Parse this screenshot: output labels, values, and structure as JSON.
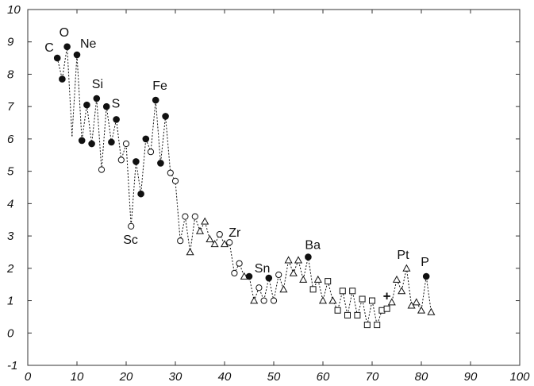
{
  "chart_data": {
    "type": "scatter",
    "title": "",
    "xlabel": "",
    "ylabel": "",
    "xlim": [
      0,
      100
    ],
    "ylim": [
      -1,
      10
    ],
    "xticks": [
      "0",
      "10",
      "20",
      "30",
      "40",
      "50",
      "60",
      "70",
      "80",
      "90",
      "100"
    ],
    "yticks": [
      "-1",
      "0",
      "1",
      "2",
      "3",
      "4",
      "5",
      "6",
      "7",
      "8",
      "9",
      "10"
    ],
    "grid": false,
    "line_style": "dashed",
    "colors": {
      "ink": "#111111",
      "frame": "#333333"
    },
    "points": [
      {
        "x": 6,
        "y": 8.5,
        "m": "filled"
      },
      {
        "x": 7,
        "y": 7.85,
        "m": "filled"
      },
      {
        "x": 8,
        "y": 8.85,
        "m": "filled"
      },
      {
        "x": 9,
        "y": 6.1,
        "m": "none"
      },
      {
        "x": 10,
        "y": 8.6,
        "m": "filled"
      },
      {
        "x": 11,
        "y": 5.95,
        "m": "filled"
      },
      {
        "x": 12,
        "y": 7.05,
        "m": "filled"
      },
      {
        "x": 13,
        "y": 5.85,
        "m": "filled"
      },
      {
        "x": 14,
        "y": 7.25,
        "m": "filled"
      },
      {
        "x": 15,
        "y": 5.05,
        "m": "circle"
      },
      {
        "x": 16,
        "y": 7.0,
        "m": "filled"
      },
      {
        "x": 17,
        "y": 5.9,
        "m": "filled"
      },
      {
        "x": 18,
        "y": 6.6,
        "m": "filled"
      },
      {
        "x": 19,
        "y": 5.35,
        "m": "circle"
      },
      {
        "x": 20,
        "y": 5.85,
        "m": "circle"
      },
      {
        "x": 21,
        "y": 3.3,
        "m": "circle"
      },
      {
        "x": 22,
        "y": 5.3,
        "m": "filled"
      },
      {
        "x": 23,
        "y": 4.3,
        "m": "filled"
      },
      {
        "x": 24,
        "y": 6.0,
        "m": "filled"
      },
      {
        "x": 25,
        "y": 5.6,
        "m": "circle"
      },
      {
        "x": 26,
        "y": 7.2,
        "m": "filled"
      },
      {
        "x": 27,
        "y": 5.25,
        "m": "filled"
      },
      {
        "x": 28,
        "y": 6.7,
        "m": "filled"
      },
      {
        "x": 29,
        "y": 4.95,
        "m": "circle"
      },
      {
        "x": 30,
        "y": 4.7,
        "m": "circle"
      },
      {
        "x": 31,
        "y": 2.85,
        "m": "circle"
      },
      {
        "x": 32,
        "y": 3.6,
        "m": "circle"
      },
      {
        "x": 33,
        "y": 2.5,
        "m": "triangle"
      },
      {
        "x": 34,
        "y": 3.6,
        "m": "circle"
      },
      {
        "x": 35,
        "y": 3.15,
        "m": "triangle"
      },
      {
        "x": 36,
        "y": 3.45,
        "m": "triangle"
      },
      {
        "x": 37,
        "y": 2.9,
        "m": "triangle"
      },
      {
        "x": 38,
        "y": 2.75,
        "m": "triangle"
      },
      {
        "x": 39,
        "y": 3.05,
        "m": "circle"
      },
      {
        "x": 40,
        "y": 2.75,
        "m": "triangle"
      },
      {
        "x": 41,
        "y": 2.8,
        "m": "circle"
      },
      {
        "x": 42,
        "y": 1.85,
        "m": "circle"
      },
      {
        "x": 43,
        "y": 2.15,
        "m": "circle"
      },
      {
        "x": 44,
        "y": 1.75,
        "m": "triangle"
      },
      {
        "x": 45,
        "y": 1.75,
        "m": "filled"
      },
      {
        "x": 46,
        "y": 1.0,
        "m": "triangle"
      },
      {
        "x": 47,
        "y": 1.4,
        "m": "circle"
      },
      {
        "x": 48,
        "y": 1.0,
        "m": "circle"
      },
      {
        "x": 49,
        "y": 1.7,
        "m": "filled"
      },
      {
        "x": 50,
        "y": 1.0,
        "m": "circle"
      },
      {
        "x": 51,
        "y": 1.8,
        "m": "circle"
      },
      {
        "x": 52,
        "y": 1.35,
        "m": "triangle"
      },
      {
        "x": 53,
        "y": 2.25,
        "m": "triangle"
      },
      {
        "x": 54,
        "y": 1.85,
        "m": "triangle"
      },
      {
        "x": 55,
        "y": 2.25,
        "m": "triangle"
      },
      {
        "x": 56,
        "y": 1.65,
        "m": "triangle"
      },
      {
        "x": 57,
        "y": 2.35,
        "m": "filled"
      },
      {
        "x": 58,
        "y": 1.35,
        "m": "square"
      },
      {
        "x": 59,
        "y": 1.65,
        "m": "triangle"
      },
      {
        "x": 60,
        "y": 1.0,
        "m": "triangle"
      },
      {
        "x": 61,
        "y": 1.6,
        "m": "square"
      },
      {
        "x": 62,
        "y": 1.0,
        "m": "triangle"
      },
      {
        "x": 63,
        "y": 0.7,
        "m": "square"
      },
      {
        "x": 64,
        "y": 1.3,
        "m": "square"
      },
      {
        "x": 65,
        "y": 0.55,
        "m": "square"
      },
      {
        "x": 66,
        "y": 1.3,
        "m": "square"
      },
      {
        "x": 67,
        "y": 0.55,
        "m": "square"
      },
      {
        "x": 68,
        "y": 1.05,
        "m": "square"
      },
      {
        "x": 69,
        "y": 0.25,
        "m": "square"
      },
      {
        "x": 70,
        "y": 1.0,
        "m": "square"
      },
      {
        "x": 71,
        "y": 0.25,
        "m": "square"
      },
      {
        "x": 72,
        "y": 0.7,
        "m": "square"
      },
      {
        "x": 73,
        "y": 0.75,
        "m": "square"
      },
      {
        "x": 74,
        "y": 0.95,
        "m": "triangle"
      },
      {
        "x": 75,
        "y": 1.65,
        "m": "triangle"
      },
      {
        "x": 76,
        "y": 1.3,
        "m": "triangle"
      },
      {
        "x": 77,
        "y": 2.0,
        "m": "triangle"
      },
      {
        "x": 78,
        "y": 0.85,
        "m": "triangle"
      },
      {
        "x": 79,
        "y": 0.95,
        "m": "triangle"
      },
      {
        "x": 80,
        "y": 0.7,
        "m": "triangle"
      },
      {
        "x": 81,
        "y": 1.75,
        "m": "filled"
      },
      {
        "x": 82,
        "y": 0.65,
        "m": "triangle"
      }
    ],
    "annotations": [
      {
        "text": "C",
        "x": 6,
        "y": 8.5
      },
      {
        "text": "O",
        "x": 8,
        "y": 8.85
      },
      {
        "text": "Ne",
        "x": 10,
        "y": 8.6
      },
      {
        "text": "Si",
        "x": 14,
        "y": 7.25
      },
      {
        "text": "S",
        "x": 18,
        "y": 6.6
      },
      {
        "text": "Fe",
        "x": 26,
        "y": 7.2
      },
      {
        "text": "Sc",
        "x": 21,
        "y": 3.3
      },
      {
        "text": "Zr",
        "x": 41,
        "y": 2.8
      },
      {
        "text": "Sn",
        "x": 49,
        "y": 1.7
      },
      {
        "text": "Ba",
        "x": 57,
        "y": 2.35
      },
      {
        "text": "Pt",
        "x": 77,
        "y": 2.0
      },
      {
        "text": "P",
        "x": 81,
        "y": 1.75
      }
    ],
    "extra_marks": [
      {
        "symbol": "+",
        "x": 73,
        "y": 1.15
      }
    ]
  }
}
